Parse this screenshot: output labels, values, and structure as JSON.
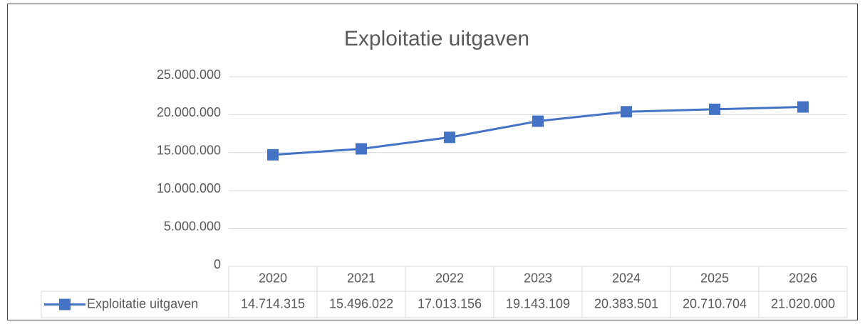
{
  "chart_data": {
    "type": "line",
    "title": "Exploitatie uitgaven",
    "categories": [
      "2020",
      "2021",
      "2022",
      "2023",
      "2024",
      "2025",
      "2026"
    ],
    "series": [
      {
        "name": "Exploitatie uitgaven",
        "color": "#4472c4",
        "values": [
          14714315,
          15496022,
          17013156,
          19143109,
          20383501,
          20710704,
          21020000
        ],
        "value_labels": [
          "14.714.315",
          "15.496.022",
          "17.013.156",
          "19.143.109",
          "20.383.501",
          "20.710.704",
          "21.020.000"
        ]
      }
    ],
    "ylim": [
      0,
      25000000
    ],
    "yticks": [
      0,
      {
        "value": 5000000,
        "label": "5.000.000"
      },
      {
        "value": 10000000,
        "label": "10.000.000"
      },
      {
        "value": 15000000,
        "label": "15.000.000"
      },
      {
        "value": 20000000,
        "label": "20.000.000"
      },
      {
        "value": 25000000,
        "label": "25.000.000"
      }
    ],
    "grid": true,
    "data_table": true
  }
}
